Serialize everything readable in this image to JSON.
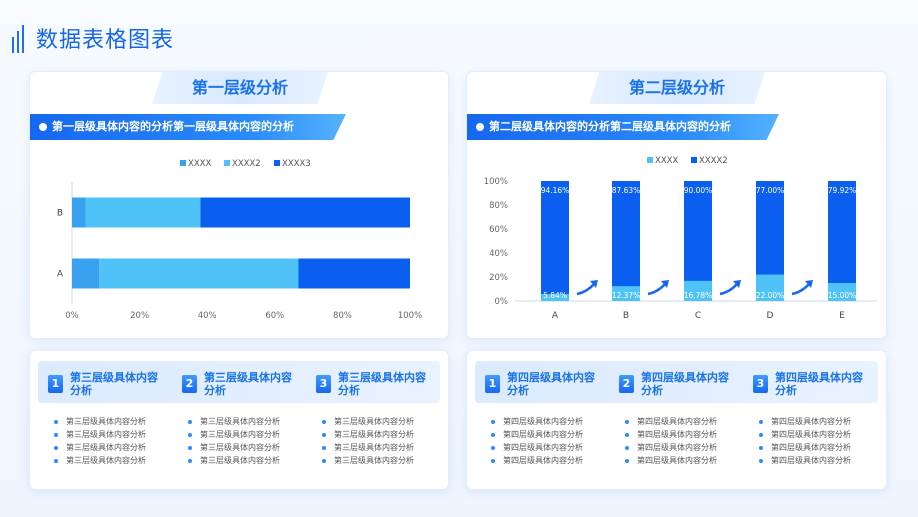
{
  "page": {
    "title": "数据表格图表"
  },
  "colors": {
    "accent": "#1565e8",
    "c1": "#3aa1f0",
    "c2": "#4fc3f7",
    "c3": "#0b5ff0",
    "bar": "#0b5ff0",
    "bar_low": "#4fc3f7"
  },
  "panels": {
    "left": {
      "header": "第一层级分析",
      "subheader": "第一层级具体内容的分析第一层级具体内容的分析"
    },
    "right": {
      "header": "第二层级分析",
      "subheader": "第二层级具体内容的分析第二层级具体内容的分析"
    }
  },
  "chart_data": [
    {
      "type": "bar",
      "orientation": "horizontal",
      "stacked": true,
      "categories": [
        "A",
        "B"
      ],
      "series": [
        {
          "name": "XXXX",
          "values": [
            8,
            4
          ]
        },
        {
          "name": "XXXX2",
          "values": [
            59,
            34
          ]
        },
        {
          "name": "XXXX3",
          "values": [
            33,
            62
          ]
        }
      ],
      "xlim": [
        0,
        100
      ],
      "xticks": [
        "0%",
        "20%",
        "40%",
        "60%",
        "80%",
        "100%"
      ],
      "legend": "top-center",
      "grid": false
    },
    {
      "type": "bar",
      "stacked": true,
      "categories": [
        "A",
        "B",
        "C",
        "D",
        "E"
      ],
      "series": [
        {
          "name": "XXXX",
          "values": [
            5.84,
            12.37,
            16.78,
            22.0,
            15.0
          ],
          "labels": [
            "5.84%",
            "12.37%",
            "16.78%",
            "22.00%",
            "15.00%"
          ]
        },
        {
          "name": "XXXX2",
          "values": [
            94.16,
            87.63,
            90.0,
            77.0,
            79.92
          ],
          "labels": [
            "94.16%",
            "87.63%",
            "90.00%",
            "77.00%",
            "79.92%"
          ]
        }
      ],
      "ylim": [
        0,
        100
      ],
      "yticks": [
        "0%",
        "20%",
        "40%",
        "60%",
        "80%",
        "100%"
      ],
      "legend": "top-center",
      "grid": false
    }
  ],
  "cards": {
    "left": {
      "columns": [
        {
          "num": "1",
          "title": "第三层级具体内容分析",
          "items": [
            "第三层级具体内容分析",
            "第三层级具体内容分析",
            "第三层级具体内容分析",
            "第三层级具体内容分析"
          ]
        },
        {
          "num": "2",
          "title": "第三层级具体内容分析",
          "items": [
            "第三层级具体内容分析",
            "第三层级具体内容分析",
            "第三层级具体内容分析",
            "第三层级具体内容分析"
          ]
        },
        {
          "num": "3",
          "title": "第三层级具体内容分析",
          "items": [
            "第三层级具体内容分析",
            "第三层级具体内容分析",
            "第三层级具体内容分析",
            "第三层级具体内容分析"
          ]
        }
      ]
    },
    "right": {
      "columns": [
        {
          "num": "1",
          "title": "第四层级具体内容分析",
          "items": [
            "第四层级具体内容分析",
            "第四层级具体内容分析",
            "第四层级具体内容分析",
            "第四层级具体内容分析"
          ]
        },
        {
          "num": "2",
          "title": "第四层级具体内容分析",
          "items": [
            "第四层级具体内容分析",
            "第四层级具体内容分析",
            "第四层级具体内容分析",
            "第四层级具体内容分析"
          ]
        },
        {
          "num": "3",
          "title": "第四层级具体内容分析",
          "items": [
            "第四层级具体内容分析",
            "第四层级具体内容分析",
            "第四层级具体内容分析",
            "第四层级具体内容分析"
          ]
        }
      ]
    }
  }
}
